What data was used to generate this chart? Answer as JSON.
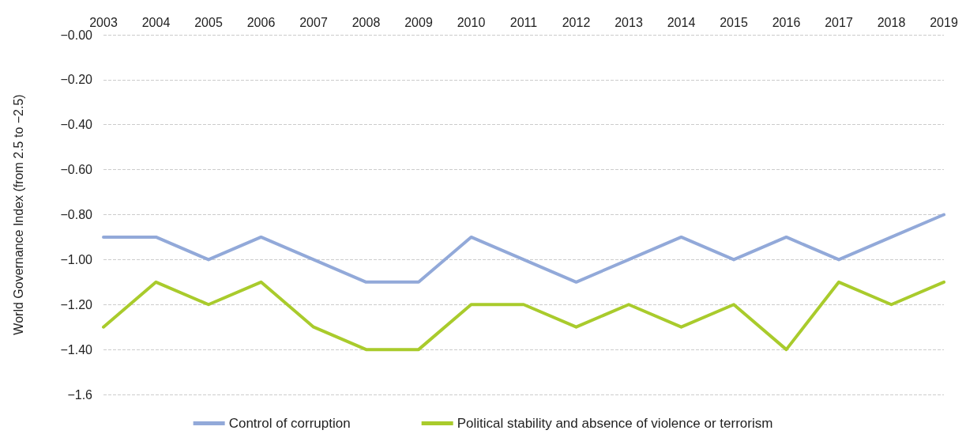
{
  "chart_data": {
    "type": "line",
    "ylabel": "World Governance Index (from 2.5 to −2.5)",
    "categories": [
      "2003",
      "2004",
      "2005",
      "2006",
      "2007",
      "2008",
      "2009",
      "2010",
      "2011",
      "2012",
      "2013",
      "2014",
      "2015",
      "2016",
      "2017",
      "2018",
      "2019"
    ],
    "series": [
      {
        "name": "Control of corruption",
        "color": "#92a9d9",
        "values": [
          -0.9,
          -0.9,
          -1.0,
          -0.9,
          -1.0,
          -1.1,
          -1.1,
          -0.9,
          -1.0,
          -1.1,
          -1.0,
          -0.9,
          -1.0,
          -0.9,
          -1.0,
          -0.9,
          -0.8
        ]
      },
      {
        "name": "Political stability and absence of violence or terrorism",
        "color": "#a9cb2c",
        "values": [
          -1.3,
          -1.1,
          -1.2,
          -1.1,
          -1.3,
          -1.4,
          -1.4,
          -1.2,
          -1.2,
          -1.3,
          -1.2,
          -1.3,
          -1.2,
          -1.4,
          -1.1,
          -1.2,
          -1.1
        ]
      }
    ],
    "ylim": [
      -1.6,
      0
    ],
    "yticks": [
      {
        "value": 0,
        "label": "−0.00"
      },
      {
        "value": -0.2,
        "label": "−0.20"
      },
      {
        "value": -0.4,
        "label": "−0.40"
      },
      {
        "value": -0.6,
        "label": "−0.60"
      },
      {
        "value": -0.8,
        "label": "−0.80"
      },
      {
        "value": -1.0,
        "label": "−1.00"
      },
      {
        "value": -1.2,
        "label": "−1.20"
      },
      {
        "value": -1.4,
        "label": "−1.40"
      },
      {
        "value": -1.6,
        "label": "−1.6"
      }
    ],
    "grid": "y",
    "legend": "bottom",
    "marker": "none",
    "line_style": "solid"
  }
}
